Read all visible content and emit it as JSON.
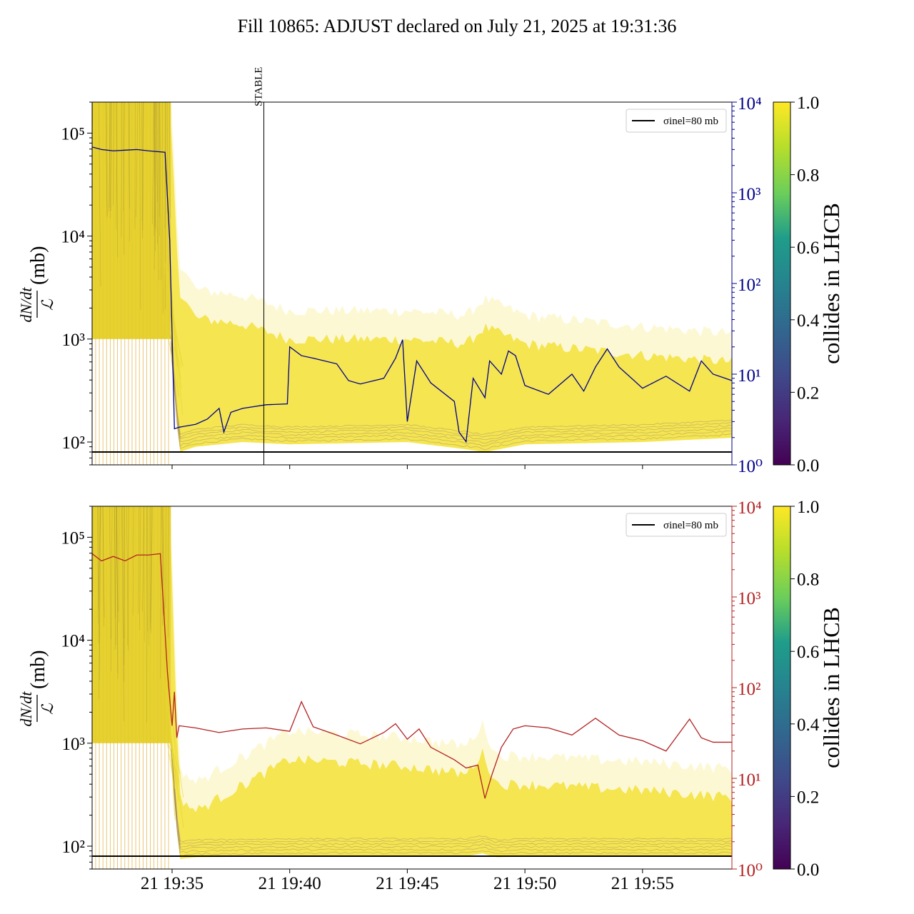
{
  "chart_data": {
    "title": "Fill 10865: ADJUST declared on July 21, 2025 at 19:31:36",
    "panels": [
      {
        "type": "line",
        "ylabel_numerator": "dN/dt",
        "ylabel_denominator": "ℒ",
        "ylabel_unit": "(mb)",
        "yscale": "log",
        "ylim": [
          60,
          200000
        ],
        "yticks": [
          100,
          1000,
          10000,
          100000
        ],
        "ytick_labels": [
          "10²",
          "10³",
          "10⁴",
          "10⁵"
        ],
        "right_yscale": "log",
        "right_ylim": [
          1,
          10000
        ],
        "right_yticks": [
          1,
          10,
          100,
          1000,
          10000
        ],
        "right_ytick_labels": [
          "10⁰",
          "10¹",
          "10²",
          "10³",
          "10⁴"
        ],
        "right_axis_color": "#00008b",
        "xlim_minutes": [
          31.6,
          58.8
        ],
        "xticks_minutes": [
          35,
          40,
          45,
          50,
          55
        ],
        "xtick_labels": [
          "",
          "",
          "",
          "",
          ""
        ],
        "reference_line": {
          "value": 80,
          "label": "σinel=80 mb"
        },
        "stable_marker": {
          "minute": 38.9,
          "label": "STABLE"
        },
        "overlay_series": {
          "color": "#00008b",
          "x_minutes": [
            31.6,
            32.0,
            32.5,
            33.0,
            33.5,
            34.0,
            34.7,
            34.9,
            35.1,
            35.3,
            36.0,
            36.5,
            37.0,
            37.2,
            37.5,
            38.0,
            39.0,
            39.9,
            40.0,
            40.5,
            41.0,
            42.0,
            42.5,
            43.0,
            44.0,
            44.5,
            44.8,
            45.0,
            45.4,
            46.0,
            47.0,
            47.2,
            47.5,
            47.8,
            48.3,
            48.5,
            49.0,
            49.3,
            49.6,
            50.0,
            51.0,
            52.0,
            52.5,
            53.0,
            53.5,
            54.0,
            55.0,
            56.0,
            57.0,
            57.5,
            58.0,
            58.8
          ],
          "values": [
            3200,
            3000,
            2900,
            2950,
            3000,
            2900,
            2800,
            300,
            2.5,
            2.6,
            2.8,
            3.2,
            4.2,
            2.3,
            3.8,
            4.2,
            4.6,
            4.7,
            20,
            16,
            15,
            13,
            8.5,
            7.8,
            9,
            15,
            24,
            3.0,
            14,
            8,
            5,
            2.3,
            1.8,
            9,
            5.5,
            14,
            10,
            18,
            16,
            7.5,
            6.0,
            10,
            6.5,
            12,
            19,
            12,
            7,
            9.5,
            6.5,
            14,
            10,
            8.5
          ],
          "display_values": [
            3200,
            3000,
            2900,
            2950,
            3000,
            2900,
            2800,
            300,
            2.5,
            2.6,
            2.8,
            3.2,
            4.2,
            2.3,
            3.8,
            4.2,
            4.6,
            4.7,
            20,
            16,
            15,
            13,
            8.5,
            7.8,
            9,
            15,
            24,
            3.0,
            14,
            8,
            5,
            2.3,
            1.8,
            9,
            5.5,
            14,
            10,
            18,
            16,
            7.5,
            6.0,
            10,
            6.5,
            12,
            19,
            12,
            7,
            9.5,
            6.5,
            14,
            10,
            8.5
          ]
        },
        "band_envelope": {
          "x_minutes": [
            31.6,
            34.9,
            35.3,
            36.0,
            38.0,
            40.0,
            45.0,
            47.5,
            48.3,
            50.0,
            55.0,
            58.8
          ],
          "upper": [
            200000,
            200000,
            3000,
            1600,
            1400,
            1000,
            1000,
            900,
            1300,
            900,
            700,
            600
          ],
          "lower": [
            1000,
            1000,
            80,
            90,
            100,
            95,
            100,
            85,
            80,
            95,
            100,
            110
          ]
        }
      },
      {
        "type": "line",
        "ylabel_numerator": "dN/dt",
        "ylabel_denominator": "ℒ",
        "ylabel_unit": "(mb)",
        "yscale": "log",
        "ylim": [
          60,
          200000
        ],
        "yticks": [
          100,
          1000,
          10000,
          100000
        ],
        "ytick_labels": [
          "10²",
          "10³",
          "10⁴",
          "10⁵"
        ],
        "right_yscale": "log",
        "right_ylim": [
          1,
          10000
        ],
        "right_yticks": [
          1,
          10,
          100,
          1000,
          10000
        ],
        "right_ytick_labels": [
          "10⁰",
          "10¹",
          "10²",
          "10³",
          "10⁴"
        ],
        "right_axis_color": "#b22222",
        "xlim_minutes": [
          31.6,
          58.8
        ],
        "xticks_minutes": [
          35,
          40,
          45,
          50,
          55
        ],
        "xtick_labels": [
          "21 19:35",
          "21 19:40",
          "21 19:45",
          "21 19:50",
          "21 19:55"
        ],
        "reference_line": {
          "value": 80,
          "label": "σinel=80 mb"
        },
        "overlay_series": {
          "color": "#b22222",
          "x_minutes": [
            31.6,
            32.0,
            32.5,
            33.0,
            33.5,
            34.0,
            34.5,
            34.8,
            35.0,
            35.1,
            35.2,
            35.3,
            36.0,
            37.0,
            38.0,
            39.0,
            40.0,
            40.5,
            41.0,
            42.0,
            43.0,
            44.0,
            44.5,
            45.0,
            45.5,
            46.0,
            47.0,
            47.5,
            48.0,
            48.3,
            48.6,
            49.0,
            49.5,
            50.0,
            51.0,
            52.0,
            53.0,
            54.0,
            55.0,
            56.0,
            57.0,
            57.5,
            58.0,
            58.8
          ],
          "values": [
            3000,
            2500,
            2800,
            2500,
            2900,
            2900,
            3000,
            150,
            38,
            90,
            28,
            38,
            36,
            32,
            35,
            36,
            33,
            70,
            37,
            30,
            24,
            32,
            40,
            27,
            35,
            22,
            16,
            13,
            14,
            6,
            11,
            22,
            35,
            38,
            36,
            30,
            46,
            30,
            26,
            20,
            45,
            28,
            25,
            25
          ]
        },
        "band_envelope": {
          "x_minutes": [
            31.6,
            34.9,
            35.3,
            36.0,
            40.0,
            45.0,
            47.5,
            48.2,
            48.8,
            50.0,
            55.0,
            58.8
          ],
          "upper": [
            200000,
            200000,
            300,
            220,
            700,
            600,
            500,
            800,
            400,
            400,
            350,
            300
          ],
          "lower": [
            1000,
            1000,
            75,
            78,
            80,
            80,
            80,
            85,
            78,
            80,
            80,
            80
          ]
        }
      }
    ],
    "colorbar": {
      "label": "collides in LHCB",
      "colormap": "viridis",
      "range": [
        0.0,
        1.0
      ],
      "ticks": [
        "0.0",
        "0.2",
        "0.4",
        "0.6",
        "0.8",
        "1.0"
      ],
      "colors": [
        "#440154",
        "#482777",
        "#3f4a8a",
        "#31678e",
        "#26838f",
        "#1f9d8a",
        "#6cce5a",
        "#b6de2b",
        "#fee825"
      ]
    },
    "legend": {
      "position": "top-right",
      "label": "σinel=80 mb"
    }
  }
}
